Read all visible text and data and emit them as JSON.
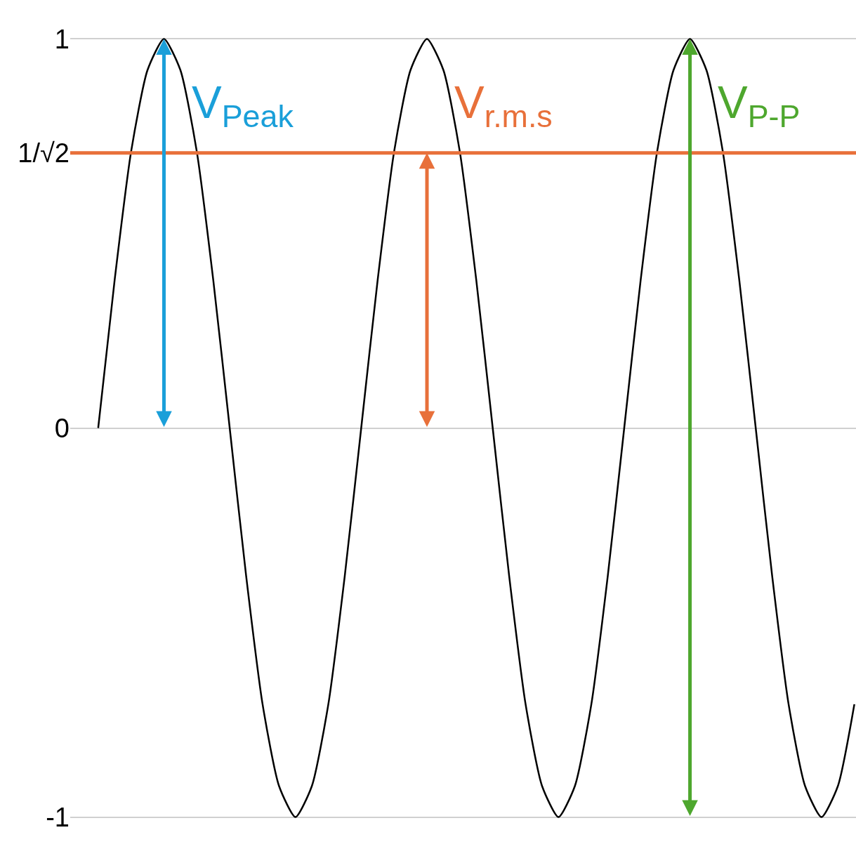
{
  "chart_data": {
    "type": "line",
    "categories": [
      null,
      null,
      null,
      null,
      null,
      null,
      null,
      null,
      null,
      null,
      null,
      null,
      null,
      null,
      null,
      null,
      null,
      null,
      null,
      null,
      null,
      null,
      null,
      null,
      null,
      null,
      null,
      null,
      null,
      null,
      null,
      null,
      null,
      null,
      null,
      null,
      null,
      null,
      null,
      null,
      null,
      null,
      null,
      null,
      null,
      null,
      null
    ],
    "series": [
      {
        "color": "#000000",
        "values": [
          0,
          0.38,
          0.71,
          0.92,
          1,
          0.92,
          0.71,
          0.38,
          0,
          -0.38,
          -0.71,
          -0.92,
          -1,
          -0.92,
          -0.71,
          -0.38,
          0,
          0.38,
          0.71,
          0.92,
          1,
          0.92,
          0.71,
          0.38,
          0,
          -0.38,
          -0.71,
          -0.92,
          -1,
          -0.92,
          -0.71,
          -0.38,
          0,
          0.38,
          0.71,
          0.92,
          1,
          0.92,
          0.71,
          0.38,
          0,
          -0.38,
          -0.71,
          -0.92,
          -1,
          -0.92,
          -0.71
        ]
      }
    ],
    "ylim": [
      -1.1,
      1.1
    ],
    "yticks": [
      -1,
      0,
      {
        "value": 0.7071,
        "label": "1/√2"
      },
      1
    ],
    "grid": "y",
    "ref_lines": [
      {
        "axis": "y",
        "value": 0.7071,
        "color": "#e8703a"
      }
    ],
    "annotations": [
      "V$_{Peak}$",
      "V$_{r.m.s}$",
      "V$_{P-P}$"
    ]
  }
}
